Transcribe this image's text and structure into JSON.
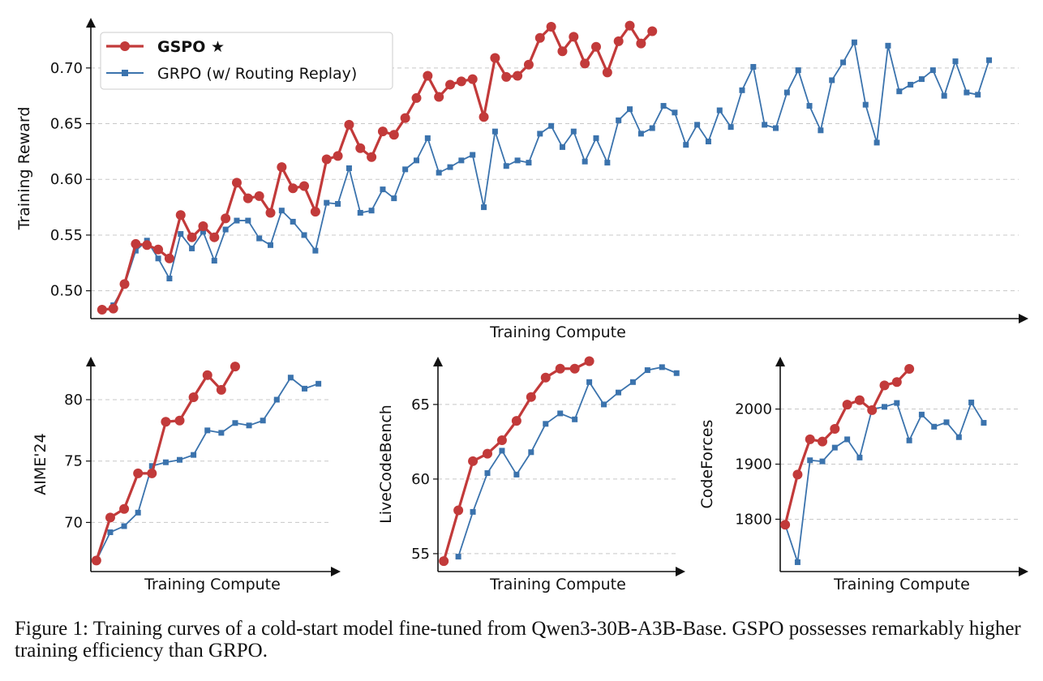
{
  "chart_data": [
    {
      "type": "line",
      "title": "",
      "xlabel": "Training Compute",
      "ylabel": "Training Reward",
      "ylim": [
        0.475,
        0.745
      ],
      "yticks": [
        "0.50",
        "0.55",
        "0.60",
        "0.65",
        "0.70"
      ],
      "grid": "horizontal dashed",
      "legend": {
        "placement": "top-left"
      },
      "series": [
        {
          "name": "GSPO ★",
          "color": "#c23a3a",
          "marker": "circle",
          "x": [
            1,
            2,
            3,
            4,
            5,
            6,
            7,
            8,
            9,
            10,
            11,
            12,
            13,
            14,
            15,
            16,
            17,
            18,
            19,
            20,
            21,
            22,
            23,
            24,
            25,
            26,
            27,
            28,
            29,
            30,
            31,
            32,
            33,
            34,
            35,
            36,
            37,
            38,
            39,
            40,
            41,
            42,
            43,
            44,
            45,
            46,
            47,
            48,
            49,
            50
          ],
          "values": [
            0.483,
            0.484,
            0.506,
            0.542,
            0.541,
            0.537,
            0.529,
            0.568,
            0.548,
            0.558,
            0.548,
            0.565,
            0.597,
            0.583,
            0.585,
            0.57,
            0.611,
            0.592,
            0.594,
            0.571,
            0.618,
            0.621,
            0.649,
            0.628,
            0.62,
            0.643,
            0.64,
            0.655,
            0.673,
            0.693,
            0.674,
            0.685,
            0.688,
            0.69,
            0.656,
            0.709,
            0.692,
            0.693,
            0.703,
            0.727,
            0.737,
            0.715,
            0.728,
            0.704,
            0.719,
            0.696,
            0.724,
            0.738,
            0.722,
            0.733
          ]
        },
        {
          "name": "GRPO (w/ Routing Replay)",
          "color": "#3b73ad",
          "marker": "square",
          "x": [
            2,
            3,
            4,
            5,
            6,
            7,
            8,
            9,
            10,
            11,
            12,
            13,
            14,
            15,
            16,
            17,
            18,
            19,
            20,
            21,
            22,
            23,
            24,
            25,
            26,
            27,
            28,
            29,
            30,
            31,
            32,
            33,
            34,
            35,
            36,
            37,
            38,
            39,
            40,
            41,
            42,
            43,
            44,
            45,
            46,
            47,
            48,
            49,
            50,
            51,
            52,
            53,
            54,
            55,
            56,
            57,
            58,
            59,
            60,
            61,
            62,
            63,
            64,
            65,
            66,
            67,
            68,
            69,
            70,
            71,
            72,
            73,
            74,
            75,
            76,
            77,
            78,
            79,
            80
          ],
          "values": [
            0.487,
            0.505,
            0.536,
            0.545,
            0.529,
            0.511,
            0.551,
            0.538,
            0.553,
            0.527,
            0.555,
            0.563,
            0.563,
            0.547,
            0.541,
            0.572,
            0.562,
            0.55,
            0.536,
            0.579,
            0.578,
            0.61,
            0.57,
            0.572,
            0.591,
            0.583,
            0.609,
            0.617,
            0.637,
            0.606,
            0.611,
            0.617,
            0.622,
            0.575,
            0.643,
            0.612,
            0.617,
            0.615,
            0.641,
            0.648,
            0.629,
            0.643,
            0.616,
            0.637,
            0.615,
            0.653,
            0.663,
            0.641,
            0.646,
            0.666,
            0.66,
            0.631,
            0.649,
            0.634,
            0.662,
            0.647,
            0.68,
            0.701,
            0.649,
            0.646,
            0.678,
            0.698,
            0.666,
            0.644,
            0.689,
            0.705,
            0.723,
            0.667,
            0.633,
            0.72,
            0.679,
            0.685,
            0.69,
            0.698,
            0.675,
            0.706,
            0.678,
            0.676,
            0.707
          ]
        }
      ]
    },
    {
      "type": "line",
      "title": "",
      "xlabel": "Training Compute",
      "ylabel": "AIME'24",
      "ylim": [
        66.0,
        83.5
      ],
      "yticks": [
        "70",
        "75",
        "80"
      ],
      "grid": "horizontal dashed",
      "series": [
        {
          "name": "GSPO ★",
          "color": "#c23a3a",
          "marker": "circle",
          "x": [
            1,
            2,
            3,
            4,
            5,
            6,
            7,
            8,
            9,
            10,
            11,
            12
          ],
          "values": [
            66.9,
            70.4,
            71.1,
            74.0,
            74.0,
            78.2,
            78.3,
            80.2,
            82.0,
            80.8,
            82.7,
            null
          ]
        },
        {
          "name": "GRPO (w/ Routing Replay)",
          "color": "#3b73ad",
          "marker": "square",
          "x": [
            1,
            2,
            3,
            4,
            5,
            6,
            7,
            8,
            9,
            10,
            11,
            12,
            13,
            14,
            15,
            16,
            17,
            18
          ],
          "values": [
            66.9,
            69.2,
            69.7,
            70.8,
            74.6,
            74.9,
            75.1,
            75.5,
            77.5,
            77.3,
            78.1,
            77.9,
            78.3,
            80.0,
            81.8,
            80.9,
            81.3,
            null
          ]
        }
      ]
    },
    {
      "type": "line",
      "title": "",
      "xlabel": "Training Compute",
      "ylabel": "LiveCodeBench",
      "ylim": [
        53.8,
        68.2
      ],
      "yticks": [
        "55",
        "60",
        "65"
      ],
      "grid": "horizontal dashed",
      "series": [
        {
          "name": "GSPO ★",
          "color": "#c23a3a",
          "marker": "circle",
          "x": [
            1,
            2,
            3,
            4,
            5,
            6,
            7,
            8,
            9,
            10,
            11
          ],
          "values": [
            54.5,
            57.9,
            61.2,
            61.7,
            62.6,
            63.9,
            65.5,
            66.8,
            67.4,
            67.4,
            67.9
          ]
        },
        {
          "name": "GRPO (w/ Routing Replay)",
          "color": "#3b73ad",
          "marker": "square",
          "x": [
            2,
            3,
            4,
            5,
            6,
            7,
            8,
            9,
            10,
            11,
            12,
            13,
            14,
            15,
            16,
            17
          ],
          "values": [
            54.8,
            57.8,
            60.4,
            61.9,
            60.3,
            61.8,
            63.7,
            64.4,
            64.0,
            66.5,
            65.0,
            65.8,
            66.5,
            67.3,
            67.5,
            67.1
          ]
        }
      ]
    },
    {
      "type": "line",
      "title": "",
      "xlabel": "Training Compute",
      "ylabel": "CodeForces",
      "ylim": [
        1705,
        2095
      ],
      "yticks": [
        "1800",
        "1900",
        "2000"
      ],
      "grid": "horizontal dashed",
      "series": [
        {
          "name": "GSPO ★",
          "color": "#c23a3a",
          "marker": "circle",
          "x": [
            1,
            2,
            3,
            4,
            5,
            6,
            7,
            8,
            9,
            10,
            11
          ],
          "values": [
            1790,
            1881,
            1945,
            1941,
            1964,
            2008,
            2016,
            1998,
            2043,
            2049,
            2073
          ]
        },
        {
          "name": "GRPO (w/ Routing Replay)",
          "color": "#3b73ad",
          "marker": "square",
          "x": [
            1,
            2,
            3,
            4,
            5,
            6,
            7,
            8,
            9,
            10,
            11,
            12,
            13,
            14,
            15,
            16,
            17,
            18,
            19,
            20
          ],
          "values": [
            1790,
            1722,
            1907,
            1905,
            1930,
            1945,
            1912,
            2000,
            2004,
            2011,
            1943,
            1990,
            1968,
            1976,
            1949,
            2012,
            1975,
            null,
            null,
            null
          ]
        }
      ]
    }
  ],
  "legend": {
    "gspo_label": "GSPO ★",
    "grpo_label": "GRPO (w/ Routing Replay)"
  },
  "caption": "Figure 1: Training curves of a cold-start model fine-tuned from Qwen3-30B-A3B-Base. GSPO possesses remarkably higher training efficiency than GRPO."
}
